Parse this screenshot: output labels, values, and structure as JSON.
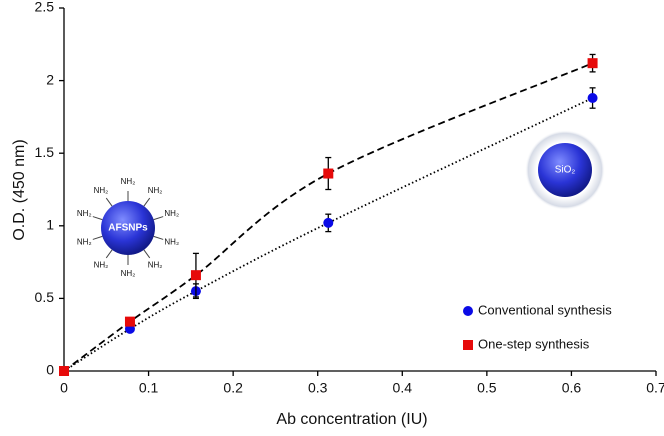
{
  "chart_data": {
    "type": "scatter",
    "x_label": "Ab concentration (IU)",
    "y_label": "O.D. (450 nm)",
    "x": [
      0,
      0.078,
      0.156,
      0.3125,
      0.625
    ],
    "series": [
      {
        "name": "Conventional synthesis",
        "color": "#0a0ae6",
        "marker": "circle",
        "line_style": "dotted",
        "values": [
          0,
          0.29,
          0.55,
          1.02,
          1.88
        ],
        "errors": [
          0,
          0.02,
          0.05,
          0.06,
          0.07
        ]
      },
      {
        "name": "One-step synthesis",
        "color": "#e60a0a",
        "marker": "square",
        "line_style": "dashed",
        "values": [
          0,
          0.34,
          0.66,
          1.36,
          2.12
        ],
        "errors": [
          0,
          0.02,
          0.15,
          0.11,
          0.06
        ]
      }
    ],
    "xlim": [
      0,
      0.7
    ],
    "xticks": [
      0,
      0.1,
      0.2,
      0.3,
      0.4,
      0.5,
      0.6,
      0.7
    ],
    "ylim": [
      0,
      2.5
    ],
    "yticks": [
      0,
      0.5,
      1,
      1.5,
      2,
      2.5
    ],
    "legend": "lower right",
    "annotations": {
      "particle_label": "AFSNPs",
      "ligand": "NH₂",
      "silica_label": "SiO₂"
    }
  }
}
